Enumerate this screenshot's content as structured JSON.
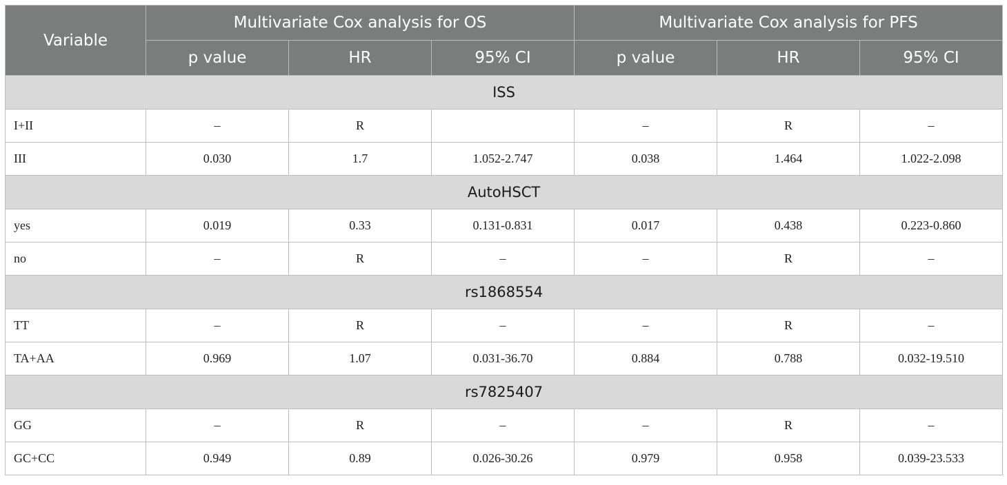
{
  "header": {
    "variable": "Variable",
    "groups": [
      "Multivariate Cox analysis for OS",
      "Multivariate Cox analysis for PFS"
    ],
    "subcolumns": [
      "p value",
      "HR",
      "95% CI",
      "p value",
      "HR",
      "95% CI"
    ]
  },
  "sections": [
    {
      "title": "ISS",
      "rows": [
        {
          "label": "I+II",
          "cells": [
            "–",
            "R",
            "",
            "–",
            "R",
            "–"
          ]
        },
        {
          "label": "III",
          "cells": [
            "0.030",
            "1.7",
            "1.052-2.747",
            "0.038",
            "1.464",
            "1.022-2.098"
          ]
        }
      ]
    },
    {
      "title": "AutoHSCT",
      "rows": [
        {
          "label": "yes",
          "cells": [
            "0.019",
            "0.33",
            "0.131-0.831",
            "0.017",
            "0.438",
            "0.223-0.860"
          ]
        },
        {
          "label": "no",
          "cells": [
            "–",
            "R",
            "–",
            "–",
            "R",
            "–"
          ]
        }
      ]
    },
    {
      "title": "rs1868554",
      "rows": [
        {
          "label": "TT",
          "cells": [
            "–",
            "R",
            "–",
            "–",
            "R",
            "–"
          ]
        },
        {
          "label": "TA+AA",
          "cells": [
            "0.969",
            "1.07",
            "0.031-36.70",
            "0.884",
            "0.788",
            "0.032-19.510"
          ]
        }
      ]
    },
    {
      "title": "rs7825407",
      "rows": [
        {
          "label": "GG",
          "cells": [
            "–",
            "R",
            "–",
            "–",
            "R",
            "–"
          ]
        },
        {
          "label": "GC+CC",
          "cells": [
            "0.949",
            "0.89",
            "0.026-30.26",
            "0.979",
            "0.958",
            "0.039-23.533"
          ]
        }
      ]
    }
  ]
}
